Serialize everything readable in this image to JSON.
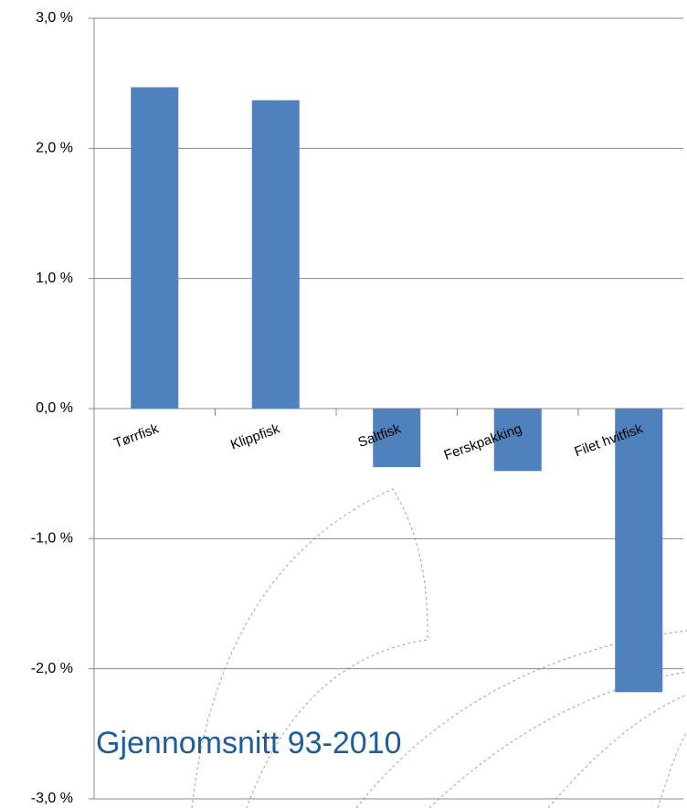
{
  "chart_data": {
    "type": "bar",
    "categories": [
      "Tørrfisk",
      "Klippfisk",
      "Saltfisk",
      "Ferskpakking",
      "Filet hvitfisk"
    ],
    "values": [
      2.47,
      2.37,
      -0.45,
      -0.48,
      -2.18
    ],
    "color": "#4f81bd",
    "ylim": [
      -3,
      3
    ],
    "yticks": [
      {
        "value": -3,
        "label": "-3,0 %"
      },
      {
        "value": -2,
        "label": "-2,0 %"
      },
      {
        "value": -1,
        "label": "-1,0 %"
      },
      {
        "value": 0,
        "label": "0,0 %"
      },
      {
        "value": 1,
        "label": "1,0 %"
      },
      {
        "value": 2,
        "label": "2,0 %"
      },
      {
        "value": 3,
        "label": "3,0 %"
      }
    ],
    "grid": true,
    "annotation": "Gjennomsnitt 93-2010"
  }
}
